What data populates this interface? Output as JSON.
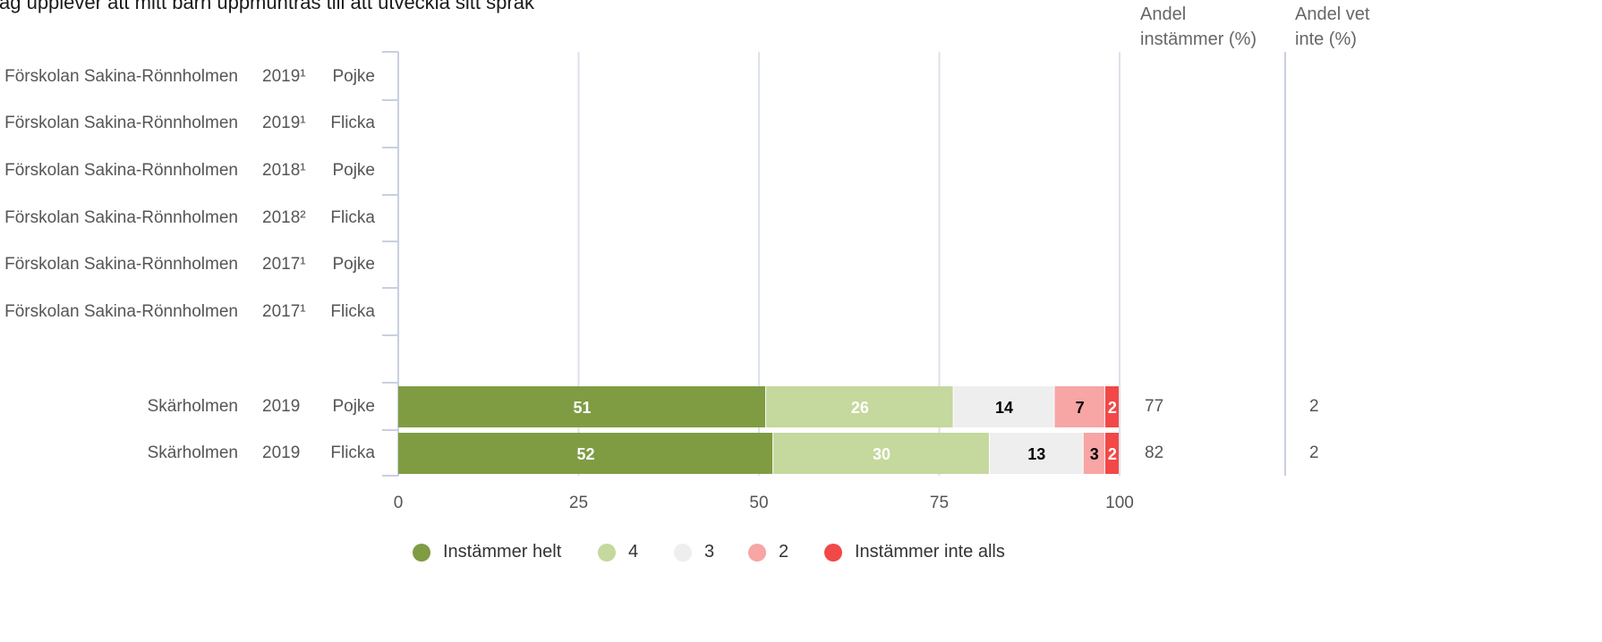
{
  "chart_data": {
    "type": "bar",
    "title": "Jag upplever att mitt barn uppmuntras till att utveckla sitt språk",
    "xlabel": "",
    "ylabel": "",
    "xlim": [
      0,
      100
    ],
    "x_ticks": [
      "0",
      "25",
      "50",
      "75",
      "100"
    ],
    "stacked": true,
    "orientation": "horizontal",
    "column_headers": {
      "agree": "Andel instämmer (%)",
      "dontknow": "Andel vet inte (%)"
    },
    "rows": [
      {
        "unit": "Förskolan Sakina-Rönnholmen",
        "year": "2019¹",
        "gender": "Pojke",
        "values": null,
        "agree": "",
        "dontknow": ""
      },
      {
        "unit": "Förskolan Sakina-Rönnholmen",
        "year": "2019¹",
        "gender": "Flicka",
        "values": null,
        "agree": "",
        "dontknow": ""
      },
      {
        "unit": "Förskolan Sakina-Rönnholmen",
        "year": "2018¹",
        "gender": "Pojke",
        "values": null,
        "agree": "",
        "dontknow": ""
      },
      {
        "unit": "Förskolan Sakina-Rönnholmen",
        "year": "2018²",
        "gender": "Flicka",
        "values": null,
        "agree": "",
        "dontknow": ""
      },
      {
        "unit": "Förskolan Sakina-Rönnholmen",
        "year": "2017¹",
        "gender": "Pojke",
        "values": null,
        "agree": "",
        "dontknow": ""
      },
      {
        "unit": "Förskolan Sakina-Rönnholmen",
        "year": "2017¹",
        "gender": "Flicka",
        "values": null,
        "agree": "",
        "dontknow": ""
      },
      {
        "unit": "Skärholmen",
        "year": "2019",
        "gender": "Pojke",
        "values": [
          51,
          26,
          14,
          7,
          2
        ],
        "agree": "77",
        "dontknow": "2"
      },
      {
        "unit": "Skärholmen",
        "year": "2019",
        "gender": "Flicka",
        "values": [
          52,
          30,
          13,
          3,
          2
        ],
        "agree": "82",
        "dontknow": "2"
      }
    ],
    "series": [
      {
        "name": "Instämmer helt",
        "color": "#7f9c43",
        "label_color": "#ffffff"
      },
      {
        "name": "4",
        "color": "#c5d89d",
        "label_color": "#ffffff"
      },
      {
        "name": "3",
        "color": "#eeeeee",
        "label_color": "#000000"
      },
      {
        "name": "2",
        "color": "#f7a5a5",
        "label_color": "#000000"
      },
      {
        "name": "Instämmer inte alls",
        "color": "#f24848",
        "label_color": "#ffffff"
      }
    ],
    "grid": true,
    "legend": "bottom"
  }
}
